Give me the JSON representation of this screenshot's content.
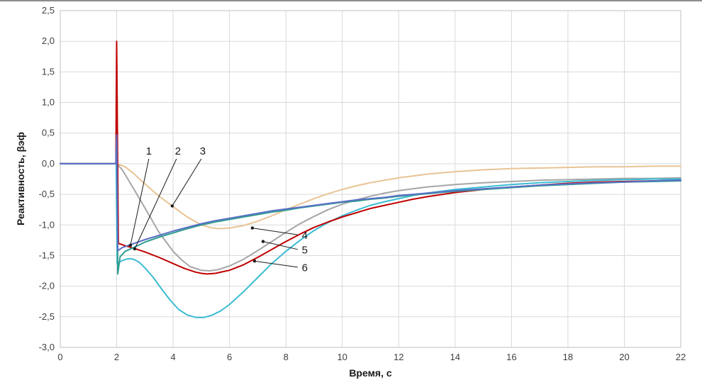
{
  "page": {
    "background": "#ffffff"
  },
  "chart": {
    "xlabel": "Время, с",
    "ylabel": "Реактивность, βэф"
  },
  "chart_data": {
    "type": "line",
    "title": "",
    "xlabel": "Время, с",
    "ylabel": "Реактивность, βэф",
    "xlim": [
      0,
      22
    ],
    "ylim": [
      -3.0,
      2.5
    ],
    "grid": true,
    "legend_position": "none",
    "xticks": [
      0,
      2,
      4,
      6,
      8,
      10,
      12,
      14,
      16,
      18,
      20,
      22
    ],
    "xtick_labels": [
      "0",
      "2",
      "4",
      "6",
      "8",
      "10",
      "12",
      "14",
      "16",
      "18",
      "20",
      "22"
    ],
    "yticks": [
      2.5,
      2.0,
      1.5,
      1.0,
      0.5,
      0.0,
      -0.5,
      -1.0,
      -1.5,
      -2.0,
      -2.5,
      -3.0
    ],
    "ytick_labels": [
      "2,5",
      "2,0",
      "1,5",
      "1,0",
      "0,5",
      "0,0",
      "-0,5",
      "-1,0",
      "-1,5",
      "-2,0",
      "-2,5",
      "-3,0"
    ],
    "colors": {
      "grid": "#d9d9d9",
      "plot_border": "#bfbfbf",
      "annotation": "#1a1a1a",
      "tick_text": "#404040"
    },
    "series": [
      {
        "name": "1",
        "color": "#5b6fc7",
        "points": [
          [
            0,
            0
          ],
          [
            1.97,
            0
          ],
          [
            2,
            0.47
          ],
          [
            2.04,
            -1.42
          ],
          [
            2.2,
            -1.37
          ],
          [
            2.5,
            -1.32
          ],
          [
            3,
            -1.24
          ],
          [
            3.5,
            -1.17
          ],
          [
            4,
            -1.1
          ],
          [
            4.5,
            -1.04
          ],
          [
            5,
            -0.98
          ],
          [
            5.5,
            -0.93
          ],
          [
            6,
            -0.89
          ],
          [
            6.5,
            -0.85
          ],
          [
            7,
            -0.81
          ],
          [
            7.5,
            -0.77
          ],
          [
            8,
            -0.74
          ],
          [
            8.5,
            -0.71
          ],
          [
            9,
            -0.68
          ],
          [
            9.5,
            -0.65
          ],
          [
            10,
            -0.62
          ],
          [
            10.5,
            -0.59
          ],
          [
            11,
            -0.57
          ],
          [
            11.5,
            -0.55
          ],
          [
            12,
            -0.52
          ],
          [
            12.5,
            -0.5
          ],
          [
            13,
            -0.48
          ],
          [
            14,
            -0.44
          ],
          [
            15,
            -0.41
          ],
          [
            16,
            -0.38
          ],
          [
            17,
            -0.35
          ],
          [
            18,
            -0.33
          ],
          [
            19,
            -0.31
          ],
          [
            20,
            -0.3
          ],
          [
            21,
            -0.28
          ],
          [
            22,
            -0.27
          ]
        ]
      },
      {
        "name": "2",
        "color": "#2f9e8f",
        "points": [
          [
            0,
            0
          ],
          [
            1.97,
            0
          ],
          [
            2,
            0.45
          ],
          [
            2.04,
            -1.8
          ],
          [
            2.12,
            -1.52
          ],
          [
            2.3,
            -1.43
          ],
          [
            2.6,
            -1.37
          ],
          [
            3,
            -1.28
          ],
          [
            3.5,
            -1.2
          ],
          [
            4,
            -1.13
          ],
          [
            4.5,
            -1.06
          ],
          [
            5,
            -1.0
          ],
          [
            5.5,
            -0.95
          ],
          [
            6,
            -0.91
          ],
          [
            6.5,
            -0.87
          ],
          [
            7,
            -0.83
          ],
          [
            7.5,
            -0.79
          ],
          [
            8,
            -0.76
          ],
          [
            8.5,
            -0.72
          ],
          [
            9,
            -0.69
          ],
          [
            9.5,
            -0.66
          ],
          [
            10,
            -0.63
          ],
          [
            10.5,
            -0.61
          ],
          [
            11,
            -0.58
          ],
          [
            11.5,
            -0.56
          ],
          [
            12,
            -0.53
          ],
          [
            12.5,
            -0.51
          ],
          [
            13,
            -0.49
          ],
          [
            14,
            -0.45
          ],
          [
            15,
            -0.42
          ],
          [
            16,
            -0.39
          ],
          [
            17,
            -0.36
          ],
          [
            18,
            -0.34
          ],
          [
            19,
            -0.32
          ],
          [
            20,
            -0.3
          ],
          [
            21,
            -0.29
          ],
          [
            22,
            -0.28
          ]
        ]
      },
      {
        "name": "3",
        "color": "#e9c394",
        "points": [
          [
            0,
            0
          ],
          [
            2,
            0
          ],
          [
            2.3,
            -0.05
          ],
          [
            2.6,
            -0.16
          ],
          [
            3,
            -0.33
          ],
          [
            3.5,
            -0.53
          ],
          [
            4,
            -0.7
          ],
          [
            4.5,
            -0.87
          ],
          [
            5,
            -1.0
          ],
          [
            5.3,
            -1.04
          ],
          [
            5.6,
            -1.06
          ],
          [
            6,
            -1.05
          ],
          [
            6.5,
            -1.01
          ],
          [
            7,
            -0.94
          ],
          [
            7.5,
            -0.85
          ],
          [
            8,
            -0.75
          ],
          [
            8.5,
            -0.66
          ],
          [
            9,
            -0.57
          ],
          [
            9.5,
            -0.49
          ],
          [
            10,
            -0.42
          ],
          [
            10.5,
            -0.36
          ],
          [
            11,
            -0.31
          ],
          [
            11.5,
            -0.27
          ],
          [
            12,
            -0.23
          ],
          [
            12.5,
            -0.2
          ],
          [
            13,
            -0.17
          ],
          [
            13.5,
            -0.15
          ],
          [
            14,
            -0.13
          ],
          [
            15,
            -0.1
          ],
          [
            16,
            -0.08
          ],
          [
            17,
            -0.07
          ],
          [
            18,
            -0.06
          ],
          [
            19,
            -0.05
          ],
          [
            20,
            -0.05
          ],
          [
            21,
            -0.04
          ],
          [
            22,
            -0.04
          ]
        ]
      },
      {
        "name": "4",
        "color": "#a6a6a6",
        "points": [
          [
            0,
            0
          ],
          [
            2,
            0
          ],
          [
            2.2,
            -0.1
          ],
          [
            2.5,
            -0.33
          ],
          [
            3,
            -0.72
          ],
          [
            3.5,
            -1.12
          ],
          [
            4,
            -1.43
          ],
          [
            4.3,
            -1.57
          ],
          [
            4.6,
            -1.68
          ],
          [
            5,
            -1.74
          ],
          [
            5.3,
            -1.75
          ],
          [
            5.6,
            -1.73
          ],
          [
            6,
            -1.67
          ],
          [
            6.5,
            -1.56
          ],
          [
            7,
            -1.42
          ],
          [
            7.5,
            -1.27
          ],
          [
            8,
            -1.12
          ],
          [
            8.5,
            -0.98
          ],
          [
            9,
            -0.86
          ],
          [
            9.5,
            -0.75
          ],
          [
            10,
            -0.66
          ],
          [
            10.5,
            -0.59
          ],
          [
            11,
            -0.53
          ],
          [
            11.5,
            -0.48
          ],
          [
            12,
            -0.44
          ],
          [
            12.5,
            -0.41
          ],
          [
            13,
            -0.38
          ],
          [
            14,
            -0.34
          ],
          [
            15,
            -0.31
          ],
          [
            16,
            -0.29
          ],
          [
            17,
            -0.27
          ],
          [
            18,
            -0.26
          ],
          [
            19,
            -0.25
          ],
          [
            20,
            -0.24
          ],
          [
            21,
            -0.24
          ],
          [
            22,
            -0.23
          ]
        ]
      },
      {
        "name": "5",
        "color": "#c00000",
        "points": [
          [
            0,
            0
          ],
          [
            1.97,
            0
          ],
          [
            2,
            2.0
          ],
          [
            2.06,
            -1.3
          ],
          [
            2.3,
            -1.34
          ],
          [
            2.6,
            -1.38
          ],
          [
            3,
            -1.44
          ],
          [
            3.5,
            -1.53
          ],
          [
            4,
            -1.63
          ],
          [
            4.4,
            -1.71
          ],
          [
            4.8,
            -1.77
          ],
          [
            5,
            -1.79
          ],
          [
            5.2,
            -1.8
          ],
          [
            5.5,
            -1.79
          ],
          [
            5.8,
            -1.76
          ],
          [
            6,
            -1.74
          ],
          [
            6.5,
            -1.65
          ],
          [
            7,
            -1.53
          ],
          [
            7.5,
            -1.4
          ],
          [
            8,
            -1.27
          ],
          [
            8.5,
            -1.15
          ],
          [
            9,
            -1.04
          ],
          [
            9.5,
            -0.95
          ],
          [
            10,
            -0.87
          ],
          [
            10.5,
            -0.8
          ],
          [
            11,
            -0.73
          ],
          [
            11.5,
            -0.68
          ],
          [
            12,
            -0.63
          ],
          [
            12.5,
            -0.58
          ],
          [
            13,
            -0.54
          ],
          [
            14,
            -0.47
          ],
          [
            15,
            -0.42
          ],
          [
            16,
            -0.38
          ],
          [
            17,
            -0.35
          ],
          [
            18,
            -0.32
          ],
          [
            19,
            -0.3
          ],
          [
            20,
            -0.29
          ],
          [
            21,
            -0.28
          ],
          [
            22,
            -0.27
          ]
        ]
      },
      {
        "name": "6",
        "color": "#3bbcd4",
        "points": [
          [
            0,
            0
          ],
          [
            1.98,
            0
          ],
          [
            2.02,
            -1.63
          ],
          [
            2.2,
            -1.58
          ],
          [
            2.4,
            -1.55
          ],
          [
            2.6,
            -1.56
          ],
          [
            2.8,
            -1.61
          ],
          [
            3,
            -1.7
          ],
          [
            3.3,
            -1.86
          ],
          [
            3.6,
            -2.05
          ],
          [
            3.9,
            -2.23
          ],
          [
            4.2,
            -2.38
          ],
          [
            4.5,
            -2.47
          ],
          [
            4.8,
            -2.51
          ],
          [
            5.1,
            -2.51
          ],
          [
            5.4,
            -2.47
          ],
          [
            5.7,
            -2.4
          ],
          [
            6,
            -2.3
          ],
          [
            6.5,
            -2.09
          ],
          [
            7,
            -1.86
          ],
          [
            7.5,
            -1.63
          ],
          [
            8,
            -1.43
          ],
          [
            8.5,
            -1.25
          ],
          [
            9,
            -1.09
          ],
          [
            9.5,
            -0.96
          ],
          [
            10,
            -0.85
          ],
          [
            10.5,
            -0.76
          ],
          [
            11,
            -0.68
          ],
          [
            11.5,
            -0.62
          ],
          [
            12,
            -0.57
          ],
          [
            12.5,
            -0.52
          ],
          [
            13,
            -0.48
          ],
          [
            14,
            -0.42
          ],
          [
            15,
            -0.38
          ],
          [
            16,
            -0.34
          ],
          [
            17,
            -0.31
          ],
          [
            18,
            -0.29
          ],
          [
            19,
            -0.27
          ],
          [
            20,
            -0.26
          ],
          [
            21,
            -0.25
          ],
          [
            22,
            -0.25
          ]
        ]
      }
    ],
    "annotations": [
      {
        "label": "1",
        "label_xy": [
          3.14,
          0.21
        ],
        "from_xy": [
          3.14,
          0.08
        ],
        "to_xy": [
          2.49,
          -1.33
        ]
      },
      {
        "label": "2",
        "label_xy": [
          4.17,
          0.21
        ],
        "from_xy": [
          4.12,
          0.08
        ],
        "to_xy": [
          2.64,
          -1.39
        ]
      },
      {
        "label": "3",
        "label_xy": [
          5.05,
          0.21
        ],
        "from_xy": [
          5.0,
          0.08
        ],
        "to_xy": [
          3.97,
          -0.69
        ]
      },
      {
        "label": "4",
        "label_xy": [
          8.67,
          -1.17
        ],
        "from_xy": [
          8.42,
          -1.16
        ],
        "to_xy": [
          6.81,
          -1.05
        ]
      },
      {
        "label": "5",
        "label_xy": [
          8.67,
          -1.41
        ],
        "from_xy": [
          8.42,
          -1.4
        ],
        "to_xy": [
          7.19,
          -1.27
        ]
      },
      {
        "label": "6",
        "label_xy": [
          8.67,
          -1.7
        ],
        "from_xy": [
          8.42,
          -1.69
        ],
        "to_xy": [
          6.89,
          -1.59
        ]
      }
    ]
  }
}
